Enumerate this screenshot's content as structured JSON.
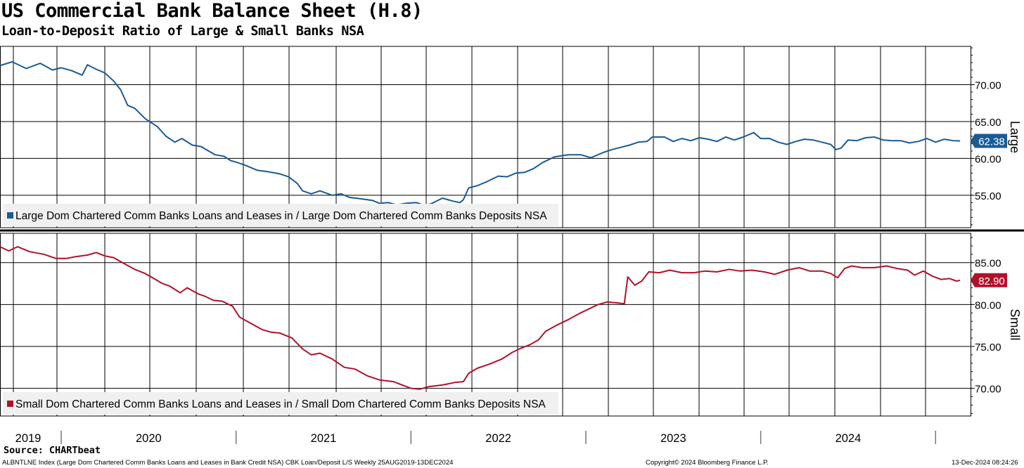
{
  "chart_data": {
    "type": "line",
    "title": "US Commercial Bank Balance Sheet (H.8)",
    "subtitle": "Loan-to-Deposit Ratio of Large & Small Banks NSA",
    "x_range": [
      "2019-08-25",
      "2024-12-13"
    ],
    "year_labels": [
      "2019",
      "2020",
      "2021",
      "2022",
      "2023",
      "2024"
    ],
    "panels": [
      {
        "name": "large",
        "axis_label": "Large",
        "ylim": [
          50.6,
          75.2
        ],
        "yticks": [
          55.0,
          60.0,
          65.0,
          70.0
        ],
        "ytick_labels": [
          "55.00",
          "60.00",
          "65.00",
          "70.00"
        ],
        "color": "#1a5b94",
        "last_value": 62.38,
        "last_value_label": "62.38",
        "legend": "Large Dom Chartered Comm Banks Loans and Leases in / Large Dom Chartered Comm Banks Deposits NSA",
        "series": [
          [
            2019.65,
            72.6
          ],
          [
            2019.72,
            73.1
          ],
          [
            2019.8,
            72.2
          ],
          [
            2019.88,
            72.9
          ],
          [
            2019.95,
            72.0
          ],
          [
            2020.0,
            72.3
          ],
          [
            2020.06,
            71.9
          ],
          [
            2020.12,
            71.3
          ],
          [
            2020.15,
            72.7
          ],
          [
            2020.2,
            72.1
          ],
          [
            2020.25,
            71.6
          ],
          [
            2020.3,
            70.5
          ],
          [
            2020.34,
            69.3
          ],
          [
            2020.38,
            67.2
          ],
          [
            2020.42,
            66.8
          ],
          [
            2020.48,
            65.4
          ],
          [
            2020.55,
            64.3
          ],
          [
            2020.6,
            63.0
          ],
          [
            2020.65,
            62.2
          ],
          [
            2020.69,
            62.7
          ],
          [
            2020.75,
            61.8
          ],
          [
            2020.8,
            61.6
          ],
          [
            2020.88,
            60.5
          ],
          [
            2020.93,
            60.3
          ],
          [
            2020.97,
            59.7
          ],
          [
            2021.0,
            59.5
          ],
          [
            2021.05,
            59.1
          ],
          [
            2021.12,
            58.4
          ],
          [
            2021.18,
            58.2
          ],
          [
            2021.25,
            57.9
          ],
          [
            2021.3,
            57.5
          ],
          [
            2021.35,
            56.6
          ],
          [
            2021.38,
            55.6
          ],
          [
            2021.43,
            55.2
          ],
          [
            2021.48,
            55.6
          ],
          [
            2021.55,
            55.0
          ],
          [
            2021.6,
            55.2
          ],
          [
            2021.65,
            54.7
          ],
          [
            2021.72,
            54.5
          ],
          [
            2021.78,
            54.3
          ],
          [
            2021.82,
            53.9
          ],
          [
            2021.87,
            54.0
          ],
          [
            2021.92,
            53.7
          ],
          [
            2021.97,
            53.9
          ],
          [
            2022.03,
            54.0
          ],
          [
            2022.08,
            53.6
          ],
          [
            2022.12,
            53.9
          ],
          [
            2022.18,
            54.6
          ],
          [
            2022.24,
            54.2
          ],
          [
            2022.28,
            54.0
          ],
          [
            2022.3,
            54.4
          ],
          [
            2022.33,
            56.0
          ],
          [
            2022.38,
            56.3
          ],
          [
            2022.43,
            56.8
          ],
          [
            2022.5,
            57.6
          ],
          [
            2022.55,
            57.5
          ],
          [
            2022.6,
            58.0
          ],
          [
            2022.65,
            58.1
          ],
          [
            2022.7,
            58.6
          ],
          [
            2022.75,
            59.4
          ],
          [
            2022.82,
            60.2
          ],
          [
            2022.9,
            60.5
          ],
          [
            2022.97,
            60.5
          ],
          [
            2023.03,
            60.1
          ],
          [
            2023.1,
            60.8
          ],
          [
            2023.15,
            61.2
          ],
          [
            2023.2,
            61.5
          ],
          [
            2023.25,
            61.8
          ],
          [
            2023.3,
            62.2
          ],
          [
            2023.35,
            62.3
          ],
          [
            2023.38,
            62.9
          ],
          [
            2023.45,
            62.9
          ],
          [
            2023.5,
            62.3
          ],
          [
            2023.55,
            62.7
          ],
          [
            2023.6,
            62.4
          ],
          [
            2023.65,
            62.8
          ],
          [
            2023.7,
            62.6
          ],
          [
            2023.75,
            62.3
          ],
          [
            2023.8,
            62.9
          ],
          [
            2023.85,
            62.5
          ],
          [
            2023.9,
            62.9
          ],
          [
            2023.96,
            63.5
          ],
          [
            2024.0,
            62.7
          ],
          [
            2024.05,
            62.7
          ],
          [
            2024.1,
            62.2
          ],
          [
            2024.15,
            61.9
          ],
          [
            2024.2,
            62.3
          ],
          [
            2024.25,
            62.6
          ],
          [
            2024.3,
            62.5
          ],
          [
            2024.35,
            62.2
          ],
          [
            2024.4,
            61.9
          ],
          [
            2024.43,
            61.2
          ],
          [
            2024.46,
            61.4
          ],
          [
            2024.5,
            62.5
          ],
          [
            2024.55,
            62.4
          ],
          [
            2024.6,
            62.8
          ],
          [
            2024.65,
            62.9
          ],
          [
            2024.7,
            62.5
          ],
          [
            2024.75,
            62.4
          ],
          [
            2024.8,
            62.4
          ],
          [
            2024.85,
            62.1
          ],
          [
            2024.9,
            62.3
          ],
          [
            2024.95,
            62.7
          ],
          [
            2025.0,
            62.2
          ],
          [
            2025.05,
            62.6
          ],
          [
            2025.1,
            62.4
          ],
          [
            2025.14,
            62.38
          ]
        ]
      },
      {
        "name": "small",
        "axis_label": "Small",
        "ylim": [
          66.7,
          88.5
        ],
        "yticks": [
          70.0,
          75.0,
          80.0,
          85.0
        ],
        "ytick_labels": [
          "70.00",
          "75.00",
          "80.00",
          "85.00"
        ],
        "color": "#b0122a",
        "last_value": 82.9,
        "last_value_label": "82.90",
        "legend": "Small Dom Chartered Comm Banks Loans and Leases in / Small Dom Chartered Comm Banks Deposits NSA",
        "series": [
          [
            2019.65,
            86.9
          ],
          [
            2019.7,
            86.4
          ],
          [
            2019.75,
            86.9
          ],
          [
            2019.82,
            86.3
          ],
          [
            2019.9,
            86.0
          ],
          [
            2019.97,
            85.5
          ],
          [
            2020.03,
            85.5
          ],
          [
            2020.08,
            85.7
          ],
          [
            2020.15,
            85.9
          ],
          [
            2020.2,
            86.2
          ],
          [
            2020.25,
            85.8
          ],
          [
            2020.3,
            85.6
          ],
          [
            2020.35,
            85.0
          ],
          [
            2020.42,
            84.2
          ],
          [
            2020.48,
            83.7
          ],
          [
            2020.53,
            83.1
          ],
          [
            2020.58,
            82.5
          ],
          [
            2020.62,
            82.2
          ],
          [
            2020.68,
            81.4
          ],
          [
            2020.72,
            82.0
          ],
          [
            2020.78,
            81.3
          ],
          [
            2020.82,
            81.0
          ],
          [
            2020.87,
            80.5
          ],
          [
            2020.92,
            80.4
          ],
          [
            2020.98,
            79.8
          ],
          [
            2021.02,
            78.5
          ],
          [
            2021.08,
            77.8
          ],
          [
            2021.15,
            77.0
          ],
          [
            2021.2,
            76.7
          ],
          [
            2021.25,
            76.6
          ],
          [
            2021.32,
            76.0
          ],
          [
            2021.38,
            74.7
          ],
          [
            2021.43,
            74.0
          ],
          [
            2021.48,
            74.2
          ],
          [
            2021.55,
            73.5
          ],
          [
            2021.62,
            72.5
          ],
          [
            2021.68,
            72.3
          ],
          [
            2021.75,
            71.5
          ],
          [
            2021.82,
            71.0
          ],
          [
            2021.9,
            70.8
          ],
          [
            2021.95,
            70.4
          ],
          [
            2022.0,
            70.0
          ],
          [
            2022.05,
            69.9
          ],
          [
            2022.1,
            70.2
          ],
          [
            2022.18,
            70.4
          ],
          [
            2022.25,
            70.7
          ],
          [
            2022.3,
            70.8
          ],
          [
            2022.33,
            71.8
          ],
          [
            2022.38,
            72.4
          ],
          [
            2022.45,
            72.9
          ],
          [
            2022.52,
            73.5
          ],
          [
            2022.58,
            74.3
          ],
          [
            2022.63,
            74.8
          ],
          [
            2022.68,
            75.2
          ],
          [
            2022.73,
            75.8
          ],
          [
            2022.77,
            76.8
          ],
          [
            2022.83,
            77.5
          ],
          [
            2022.9,
            78.2
          ],
          [
            2022.97,
            79.0
          ],
          [
            2023.02,
            79.5
          ],
          [
            2023.07,
            80.0
          ],
          [
            2023.12,
            80.3
          ],
          [
            2023.18,
            80.2
          ],
          [
            2023.22,
            80.1
          ],
          [
            2023.24,
            83.3
          ],
          [
            2023.28,
            82.3
          ],
          [
            2023.32,
            82.8
          ],
          [
            2023.36,
            83.9
          ],
          [
            2023.42,
            83.8
          ],
          [
            2023.48,
            84.1
          ],
          [
            2023.55,
            83.8
          ],
          [
            2023.62,
            83.8
          ],
          [
            2023.68,
            84.0
          ],
          [
            2023.75,
            83.9
          ],
          [
            2023.82,
            84.2
          ],
          [
            2023.88,
            84.0
          ],
          [
            2023.95,
            84.1
          ],
          [
            2024.02,
            83.9
          ],
          [
            2024.08,
            83.6
          ],
          [
            2024.15,
            84.1
          ],
          [
            2024.22,
            84.4
          ],
          [
            2024.28,
            84.0
          ],
          [
            2024.35,
            84.0
          ],
          [
            2024.4,
            83.7
          ],
          [
            2024.44,
            83.2
          ],
          [
            2024.48,
            84.3
          ],
          [
            2024.52,
            84.6
          ],
          [
            2024.58,
            84.4
          ],
          [
            2024.65,
            84.4
          ],
          [
            2024.72,
            84.6
          ],
          [
            2024.78,
            84.3
          ],
          [
            2024.84,
            84.1
          ],
          [
            2024.88,
            83.5
          ],
          [
            2024.93,
            84.0
          ],
          [
            2024.98,
            83.4
          ],
          [
            2025.03,
            83.0
          ],
          [
            2025.08,
            83.1
          ],
          [
            2025.12,
            82.8
          ],
          [
            2025.14,
            82.9
          ]
        ]
      }
    ]
  },
  "source": {
    "label": "Source:",
    "value": "CHARTbeat"
  },
  "footer": {
    "index_info": "ALBNTLNE Index (Large Dom Chartered Comm Banks Loans and Leases in Bank Credit NSA) CBK Loan/Deposit L/S  Weekly 25AUG2019-13DEC2024",
    "copyright": "Copyright© 2024 Bloomberg Finance L.P.",
    "timestamp": "13-Dec-2024 08:24:26"
  },
  "colors": {
    "background": "#ffffff",
    "legend_background": "#f0f0f0",
    "grid": "#000000"
  }
}
